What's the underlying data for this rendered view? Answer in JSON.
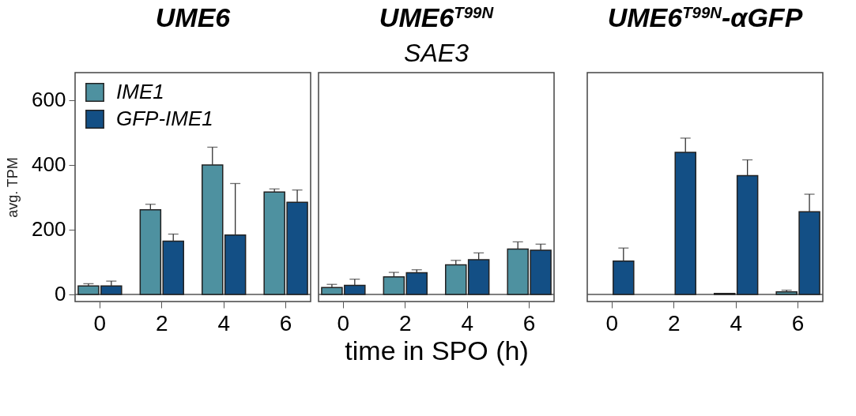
{
  "chart_data": [
    {
      "type": "bar",
      "title": "UME6",
      "ylabel": "avg. TPM",
      "categories": [
        "0",
        "2",
        "4",
        "6"
      ],
      "ylim": [
        -22,
        684
      ],
      "yticks": [
        0,
        200,
        400,
        600
      ],
      "legend": "top left",
      "ref_lines": [
        {
          "axis": "y",
          "value": 0
        }
      ],
      "series": [
        {
          "name": "IME1",
          "color": "#4e91a0",
          "values": [
            26,
            261,
            399,
            316
          ],
          "errors": [
            [
              26,
              33
            ],
            [
              261,
              278
            ],
            [
              399,
              454
            ],
            [
              316,
              325
            ]
          ]
        },
        {
          "name": "GFP-IME1",
          "color": "#134f85",
          "values": [
            26,
            164,
            183,
            284
          ],
          "errors": [
            [
              26,
              41
            ],
            [
              164,
              186
            ],
            [
              183,
              342
            ],
            [
              284,
              322
            ]
          ]
        }
      ]
    },
    {
      "type": "bar",
      "title": "UME6$^{T99N}$",
      "subtitle": "SAE3",
      "xlabel": "time in SPO (h)",
      "categories": [
        "0",
        "2",
        "4",
        "6"
      ],
      "ylim": [
        -22,
        684
      ],
      "yticks": [
        0,
        200,
        400,
        600
      ],
      "tick_labels": "x",
      "ref_lines": [
        {
          "axis": "y",
          "value": 0
        }
      ],
      "series": [
        {
          "color": "#4e91a0",
          "values": [
            21,
            54,
            91,
            140
          ],
          "errors": [
            [
              21,
              31
            ],
            [
              54,
              68
            ],
            [
              91,
              105
            ],
            [
              140,
              162
            ]
          ]
        },
        {
          "color": "#134f85",
          "values": [
            28,
            67,
            107,
            136
          ],
          "errors": [
            [
              28,
              47
            ],
            [
              67,
              76
            ],
            [
              107,
              128
            ],
            [
              136,
              155
            ]
          ]
        }
      ]
    },
    {
      "type": "bar",
      "title": "UME6$^{T99N}$-αGFP",
      "categories": [
        "0",
        "2",
        "4",
        "6"
      ],
      "ylim": [
        -22,
        684
      ],
      "yticks": [
        0,
        200,
        400,
        600
      ],
      "tick_labels": "x",
      "ref_lines": [
        {
          "axis": "y",
          "value": 0
        }
      ],
      "series": [
        {
          "color": "#4e91a0",
          "values": [
            0,
            0,
            3,
            8
          ],
          "errors": [
            null,
            null,
            null,
            [
              8,
              13
            ]
          ]
        },
        {
          "color": "#134f85",
          "values": [
            103,
            438,
            366,
            255
          ],
          "errors": [
            [
              103,
              143
            ],
            [
              438,
              482
            ],
            [
              366,
              415
            ],
            [
              255,
              309
            ]
          ]
        }
      ]
    }
  ]
}
